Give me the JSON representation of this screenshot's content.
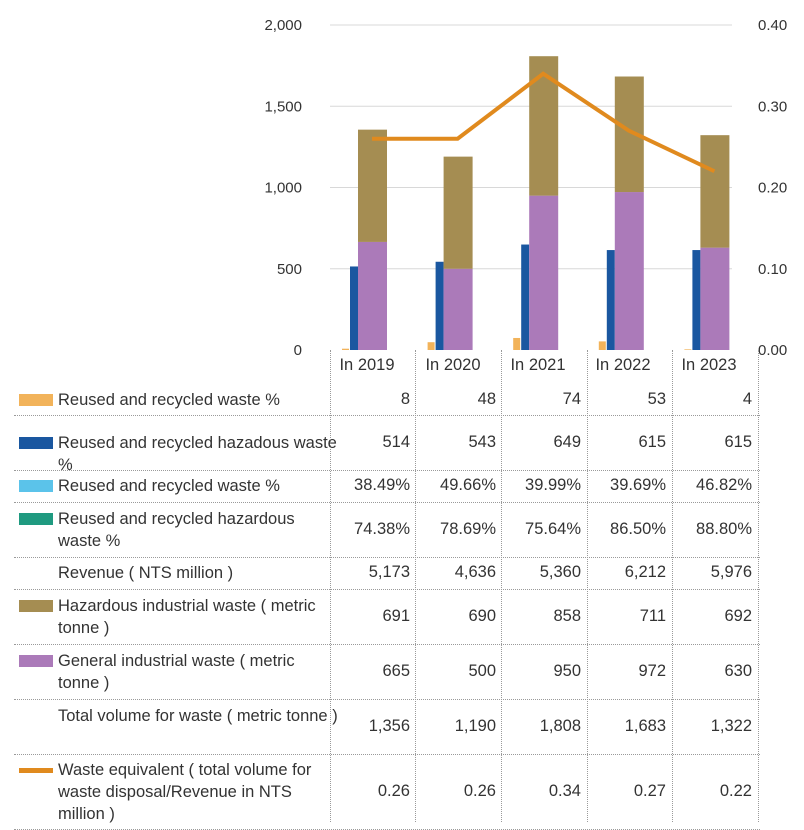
{
  "chart_data": {
    "type": "bar",
    "years": [
      "In 2019",
      "In 2020",
      "In 2021",
      "In 2022",
      "In 2023"
    ],
    "left_axis": {
      "min": 0,
      "max": 2000,
      "ticks": [
        "0",
        "500",
        "1,000",
        "1,500",
        "2,000"
      ]
    },
    "right_axis": {
      "min": 0,
      "max": 0.4,
      "ticks": [
        "0.00",
        "0.10",
        "0.20",
        "0.30",
        "0.40"
      ]
    },
    "series": [
      {
        "name": "Reused and recycled waste %",
        "color": "#f2b35a",
        "drawn": "bar",
        "values": [
          8,
          48,
          74,
          53,
          4
        ],
        "display": [
          "8",
          "48",
          "74",
          "53",
          "4"
        ]
      },
      {
        "name": "Reused and recycled hazadous waste %",
        "color": "#1a57a0",
        "drawn": "bar",
        "values": [
          514,
          543,
          649,
          615,
          615
        ],
        "display": [
          "514",
          "543",
          "649",
          "615",
          "615"
        ]
      },
      {
        "name": "Reused and recycled waste %",
        "color": "#5bc3ea",
        "drawn": "none",
        "values": [
          38.49,
          49.66,
          39.99,
          39.69,
          46.82
        ],
        "display": [
          "38.49%",
          "49.66%",
          "39.99%",
          "39.69%",
          "46.82%"
        ]
      },
      {
        "name": "Reused and recycled hazardous waste %",
        "color": "#1f9a80",
        "drawn": "none",
        "values": [
          74.38,
          78.69,
          75.64,
          86.5,
          88.8
        ],
        "display": [
          "74.38%",
          "78.69%",
          "75.64%",
          "86.50%",
          "88.80%"
        ]
      },
      {
        "name": "Revenue ( NTS million )",
        "color": "",
        "drawn": "none",
        "values": [
          5173,
          4636,
          5360,
          6212,
          5976
        ],
        "display": [
          "5,173",
          "4,636",
          "5,360",
          "6,212",
          "5,976"
        ]
      },
      {
        "name": "Hazardous industrial waste ( metric tonne )",
        "color": "#a58d52",
        "drawn": "stack-top",
        "values": [
          691,
          690,
          858,
          711,
          692
        ],
        "display": [
          "691",
          "690",
          "858",
          "711",
          "692"
        ]
      },
      {
        "name": "General industrial waste ( metric tonne )",
        "color": "#ab7ab9",
        "drawn": "stack-bottom",
        "values": [
          665,
          500,
          950,
          972,
          630
        ],
        "display": [
          "665",
          "500",
          "950",
          "972",
          "630"
        ]
      },
      {
        "name": "Total volume for waste ( metric tonne )",
        "color": "",
        "drawn": "none",
        "values": [
          1356,
          1190,
          1808,
          1683,
          1322
        ],
        "display": [
          "1,356",
          "1,190",
          "1,808",
          "1,683",
          "1,322"
        ]
      },
      {
        "name": "Waste equivalent ( total volume for waste disposal/Revenue in NTS million )",
        "color": "#e08a1e",
        "drawn": "line",
        "values": [
          0.26,
          0.26,
          0.34,
          0.27,
          0.22
        ],
        "display": [
          "0.26",
          "0.26",
          "0.34",
          "0.27",
          "0.22"
        ]
      }
    ]
  }
}
